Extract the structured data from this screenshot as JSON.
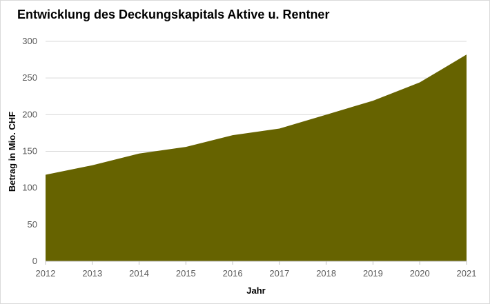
{
  "chart_data": {
    "type": "area",
    "title": "Entwicklung des Deckungskapitals Aktive u. Rentner",
    "xlabel": "Jahr",
    "ylabel": "Betrag in Mio. CHF",
    "x": [
      "2012",
      "2013",
      "2014",
      "2015",
      "2016",
      "2017",
      "2018",
      "2019",
      "2020",
      "2021"
    ],
    "series": [
      {
        "values": [
          118,
          131,
          147,
          156,
          172,
          181,
          200,
          219,
          244,
          282
        ]
      }
    ],
    "ylim": [
      0,
      300
    ],
    "yticks": [
      0,
      50,
      100,
      150,
      200,
      250,
      300
    ],
    "grid": true,
    "fill_color": "#666300",
    "grid_color": "#d9d9d9",
    "axis_color": "#bfbfbf"
  }
}
